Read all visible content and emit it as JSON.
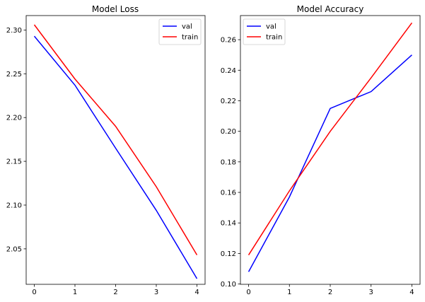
{
  "chart_data": [
    {
      "type": "line",
      "title": "Model Loss",
      "xlabel": "",
      "ylabel": "",
      "x": [
        0,
        1,
        2,
        3,
        4
      ],
      "xticks": [
        "0",
        "1",
        "2",
        "3",
        "4"
      ],
      "xlim": [
        -0.2,
        4.2
      ],
      "yticks": [
        "2.05",
        "2.10",
        "2.15",
        "2.20",
        "2.25",
        "2.30"
      ],
      "ylim": [
        2.0095,
        2.3165
      ],
      "grid": false,
      "legend": "top-right",
      "series": [
        {
          "name": "val",
          "color": "#0000ff",
          "values": [
            2.293,
            2.237,
            2.165,
            2.094,
            2.016
          ]
        },
        {
          "name": "train",
          "color": "#ff0000",
          "values": [
            2.306,
            2.244,
            2.19,
            2.121,
            2.043
          ]
        }
      ]
    },
    {
      "type": "line",
      "title": "Model Accuracy",
      "xlabel": "",
      "ylabel": "",
      "x": [
        0,
        1,
        2,
        3,
        4
      ],
      "xticks": [
        "0",
        "1",
        "2",
        "3",
        "4"
      ],
      "xlim": [
        -0.2,
        4.2
      ],
      "yticks": [
        "0.10",
        "0.12",
        "0.14",
        "0.16",
        "0.18",
        "0.20",
        "0.22",
        "0.24",
        "0.26"
      ],
      "ylim": [
        0.0998,
        0.2758
      ],
      "grid": false,
      "legend": "top-left",
      "series": [
        {
          "name": "val",
          "color": "#0000ff",
          "values": [
            0.108,
            0.157,
            0.215,
            0.226,
            0.25
          ]
        },
        {
          "name": "train",
          "color": "#ff0000",
          "values": [
            0.119,
            0.161,
            0.2,
            0.235,
            0.271
          ]
        }
      ]
    }
  ]
}
